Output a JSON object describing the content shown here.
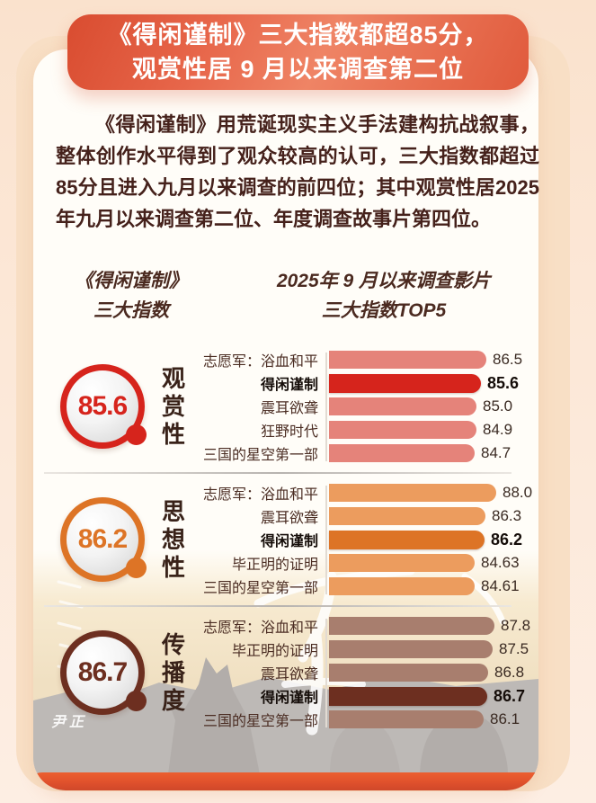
{
  "banner": {
    "line1": "《得闲谨制》三大指数都超85分，",
    "line2": "观赏性居 9 月以来调查第二位"
  },
  "intro": "《得闲谨制》用荒诞现实主义手法建构抗战叙事，整体创作水平得到了观众较高的认可，三大指数都超过85分且进入九月以来调查的前四位；其中观赏性居2025年九月以来调查第二位、年度调查故事片第四位。",
  "column_headers": {
    "left_line1": "《得闲谨制》",
    "left_line2": "三大指数",
    "right_line1": "2025年 9 月以来调查影片",
    "right_line2": "三大指数TOP5"
  },
  "watermark": {
    "signature": "尹正"
  },
  "colors": {
    "banner_red": "#e05a3c",
    "page_bg": "#fdeadb",
    "frame_peach": "#f8dfc5",
    "card_white": "#fffdf8",
    "text_dark_brown": "#45211b",
    "lip_orange": "#e4552d",
    "divider_gray": "#b7b3af"
  },
  "chart_data": [
    {
      "type": "bar",
      "orientation": "horizontal",
      "index_name": "观赏性",
      "badge_value": "85.6",
      "categories": [
        "志愿军：浴血和平",
        "得闲谨制",
        "震耳欲聋",
        "狂野时代",
        "三国的星空第一部"
      ],
      "values": [
        86.5,
        85.6,
        85.0,
        84.9,
        84.7
      ],
      "value_labels": [
        "86.5",
        "85.6",
        "85.0",
        "84.9",
        "84.7"
      ],
      "highlight_index": 1,
      "highlight_category": "得闲谨制",
      "bar_color": "#e5837a",
      "highlight_color": "#d6241c",
      "xlim": [
        62,
        90
      ],
      "grid": false,
      "legend": false
    },
    {
      "type": "bar",
      "orientation": "horizontal",
      "index_name": "思想性",
      "badge_value": "86.2",
      "categories": [
        "志愿军：浴血和平",
        "震耳欲聋",
        "得闲谨制",
        "毕正明的证明",
        "三国的星空第一部"
      ],
      "values": [
        88.0,
        86.3,
        86.2,
        84.63,
        84.61
      ],
      "value_labels": [
        "88.0",
        "86.3",
        "86.2",
        "84.63",
        "84.61"
      ],
      "highlight_index": 2,
      "highlight_category": "得闲谨制",
      "bar_color": "#ec9c5e",
      "highlight_color": "#dd7426",
      "xlim": [
        62,
        90
      ],
      "grid": false,
      "legend": false
    },
    {
      "type": "bar",
      "orientation": "horizontal",
      "index_name": "传播度",
      "badge_value": "86.7",
      "categories": [
        "志愿军：浴血和平",
        "毕正明的证明",
        "震耳欲聋",
        "得闲谨制",
        "三国的星空第一部"
      ],
      "values": [
        87.8,
        87.5,
        86.8,
        86.7,
        86.1
      ],
      "value_labels": [
        "87.8",
        "87.5",
        "86.8",
        "86.7",
        "86.1"
      ],
      "highlight_index": 3,
      "highlight_category": "得闲谨制",
      "bar_color": "#a87e6e",
      "highlight_color": "#6d2f20",
      "xlim": [
        62,
        90
      ],
      "grid": false,
      "legend": false
    }
  ]
}
